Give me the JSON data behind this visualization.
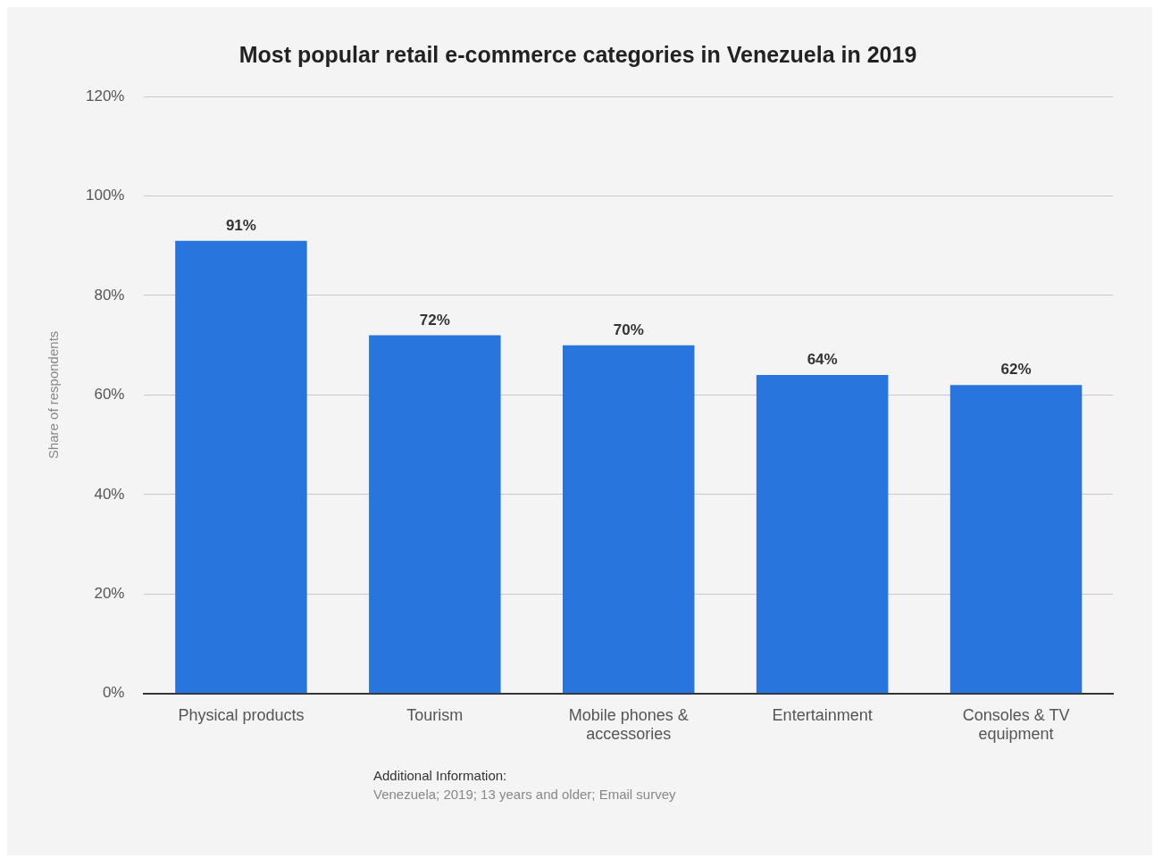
{
  "chart_data": {
    "type": "bar",
    "title": "Most popular retail e-commerce categories in Venezuela in 2019",
    "ylabel": "Share of respondents",
    "categories": [
      "Physical products",
      "Tourism",
      "Mobile phones & accessories",
      "Entertainment",
      "Consoles & TV equipment"
    ],
    "values": [
      91,
      72,
      70,
      64,
      62
    ],
    "color": "#2775dd",
    "value_labels": [
      "91%",
      "72%",
      "70%",
      "64%",
      "62%"
    ],
    "ylim": [
      0,
      120
    ],
    "yticks": [
      {
        "value": 0,
        "label": "0%"
      },
      {
        "value": 20,
        "label": "20%"
      },
      {
        "value": 40,
        "label": "40%"
      },
      {
        "value": 60,
        "label": "60%"
      },
      {
        "value": 80,
        "label": "80%"
      },
      {
        "value": 100,
        "label": "100%"
      },
      {
        "value": 120,
        "label": "120%"
      }
    ],
    "grid": "y",
    "legend": false,
    "annotations": [
      "Additional Information:",
      "Venezuela; 2019; 13 years and older; Email survey"
    ]
  }
}
